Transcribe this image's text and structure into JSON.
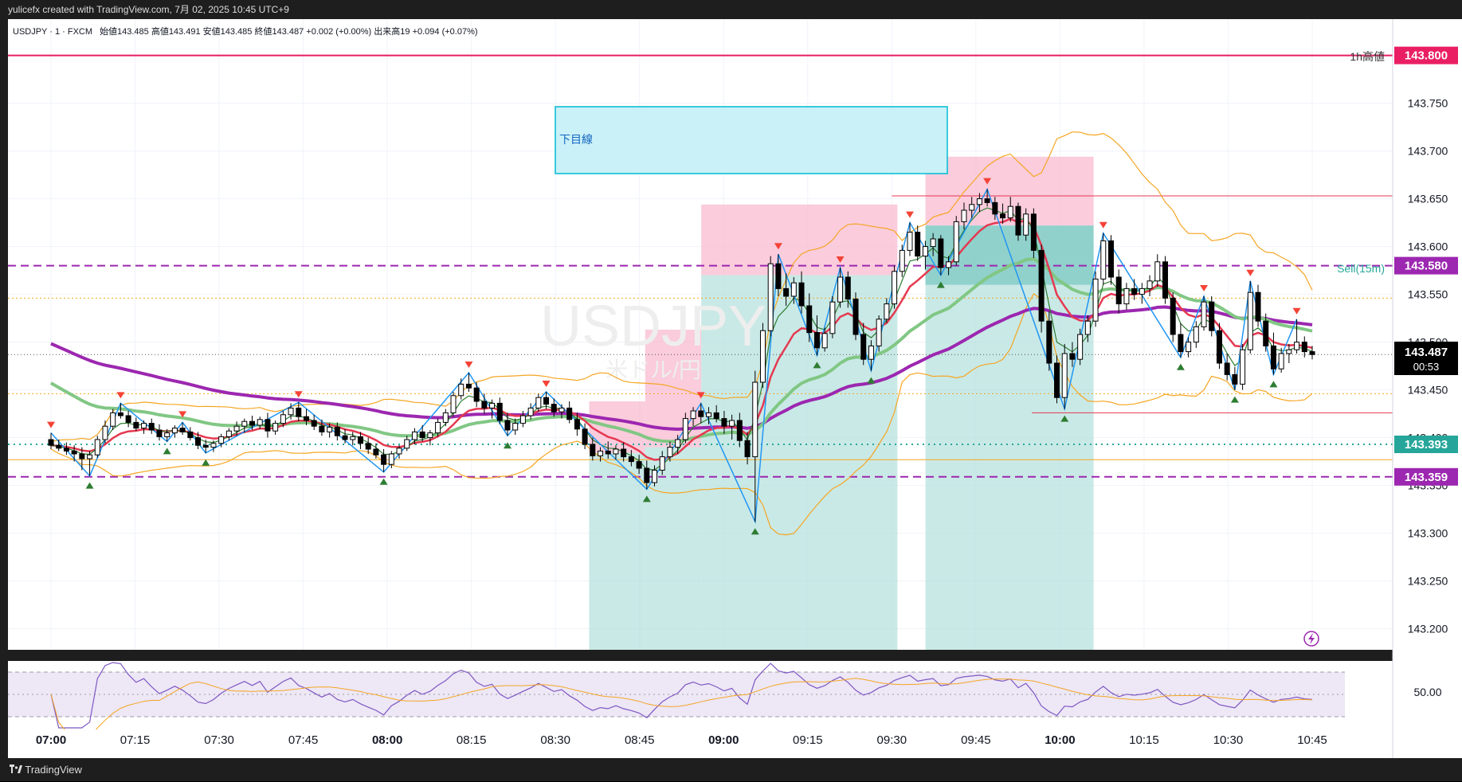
{
  "header": {
    "credit": "yulicefx created with TradingView.com, 7月 02, 2025 10:45 UTC+9"
  },
  "legend": {
    "symbol": "USDJPY · 1 · FXCM",
    "ohlc": "始値143.485  高値143.491  安値143.485  終値143.487  +0.002 (+0.00%)  出来高19  +0.094 (+0.07%)"
  },
  "watermark": {
    "symbol": "USDJPY",
    "sub": "米ドル/円"
  },
  "annotations": {
    "box_label": "下目線",
    "high_label": "1h高値",
    "sell_label": "Sell(15m)",
    "countdown": "00:53"
  },
  "footer": {
    "brand": "TradingView"
  },
  "colors": {
    "background": "#ffffff",
    "grid": "#f0f3fa",
    "ma_purple": "#9c27b0",
    "ma_green": "#81c784",
    "ma_red": "#e53950",
    "bollinger": "#f5a623",
    "zigzag": "#2196f3",
    "short_green": "#2e7d32",
    "high_line": "#e91e63",
    "level_teal": "#26a69a",
    "dashed_purple": "#9c27b0",
    "box_cyan": "#00bcd4",
    "profit_zone": "#b2dfdb",
    "loss_zone": "#f8bbd0",
    "rsi_band": "#ede7f6"
  },
  "chart_data": {
    "type": "candlestick",
    "symbol": "USDJPY",
    "interval": "1",
    "x_ticks": [
      {
        "label": "07:00",
        "bold": true
      },
      {
        "label": "07:15",
        "bold": false
      },
      {
        "label": "07:30",
        "bold": false
      },
      {
        "label": "07:45",
        "bold": false
      },
      {
        "label": "08:00",
        "bold": true
      },
      {
        "label": "08:15",
        "bold": false
      },
      {
        "label": "08:30",
        "bold": false
      },
      {
        "label": "08:45",
        "bold": false
      },
      {
        "label": "09:00",
        "bold": true
      },
      {
        "label": "09:15",
        "bold": false
      },
      {
        "label": "09:30",
        "bold": false
      },
      {
        "label": "09:45",
        "bold": false
      },
      {
        "label": "10:00",
        "bold": true
      },
      {
        "label": "10:15",
        "bold": false
      },
      {
        "label": "10:30",
        "bold": false
      },
      {
        "label": "10:45",
        "bold": false
      }
    ],
    "y_ticks": [
      "143.750",
      "143.700",
      "143.650",
      "143.600",
      "143.550",
      "143.500",
      "143.450",
      "143.400",
      "143.350",
      "143.300",
      "143.250",
      "143.200"
    ],
    "ylim": [
      143.178,
      143.838
    ],
    "xlim_minutes": [
      0,
      239
    ],
    "levels": [
      {
        "price": 143.8,
        "label": "143.800",
        "color": "#e91e63",
        "style": "solid"
      },
      {
        "price": 143.58,
        "label": "143.580",
        "color": "#9c27b0",
        "style": "dashed"
      },
      {
        "price": 143.393,
        "label": "143.393",
        "color": "#26a69a",
        "style": "dotted"
      },
      {
        "price": 143.359,
        "label": "143.359",
        "color": "#9c27b0",
        "style": "dashed"
      }
    ],
    "current_price": {
      "price": 143.487,
      "label": "143.487"
    },
    "candles": [
      [
        143.398,
        143.405,
        143.388,
        143.392
      ],
      [
        143.392,
        143.398,
        143.386,
        143.389
      ],
      [
        143.389,
        143.395,
        143.382,
        143.386
      ],
      [
        143.386,
        143.392,
        143.375,
        143.383
      ],
      [
        143.383,
        143.39,
        143.366,
        143.378
      ],
      [
        143.378,
        143.386,
        143.36,
        143.382
      ],
      [
        143.382,
        143.402,
        143.379,
        143.398
      ],
      [
        143.398,
        143.418,
        143.394,
        143.412
      ],
      [
        143.412,
        143.43,
        143.408,
        143.426
      ],
      [
        143.426,
        143.436,
        143.42,
        143.423
      ],
      [
        143.423,
        143.428,
        143.411,
        143.416
      ],
      [
        143.416,
        143.421,
        143.407,
        143.41
      ],
      [
        143.41,
        143.418,
        143.404,
        143.415
      ],
      [
        143.415,
        143.42,
        143.404,
        143.408
      ],
      [
        143.408,
        143.414,
        143.397,
        143.401
      ],
      [
        143.401,
        143.409,
        143.396,
        143.405
      ],
      [
        143.405,
        143.413,
        143.4,
        143.41
      ],
      [
        143.41,
        143.416,
        143.403,
        143.406
      ],
      [
        143.406,
        143.411,
        143.397,
        143.4
      ],
      [
        143.4,
        143.406,
        143.388,
        143.392
      ],
      [
        143.392,
        143.398,
        143.384,
        143.39
      ],
      [
        143.39,
        143.397,
        143.385,
        143.394
      ],
      [
        143.394,
        143.404,
        143.39,
        143.401
      ],
      [
        143.401,
        143.41,
        143.397,
        143.407
      ],
      [
        143.407,
        143.417,
        143.402,
        143.412
      ],
      [
        143.412,
        143.42,
        143.405,
        143.417
      ],
      [
        143.417,
        143.423,
        143.408,
        143.413
      ],
      [
        143.413,
        143.422,
        143.409,
        143.419
      ],
      [
        143.419,
        143.426,
        143.4,
        143.407
      ],
      [
        143.407,
        143.418,
        143.403,
        143.415
      ],
      [
        143.415,
        143.428,
        143.411,
        143.424
      ],
      [
        143.424,
        143.436,
        143.419,
        143.431
      ],
      [
        143.431,
        143.437,
        143.417,
        143.422
      ],
      [
        143.422,
        143.43,
        143.413,
        143.418
      ],
      [
        143.418,
        143.424,
        143.408,
        143.412
      ],
      [
        143.412,
        143.419,
        143.402,
        143.406
      ],
      [
        143.406,
        143.415,
        143.4,
        143.411
      ],
      [
        143.411,
        143.416,
        143.397,
        143.402
      ],
      [
        143.402,
        143.409,
        143.394,
        143.398
      ],
      [
        143.398,
        143.406,
        143.392,
        143.401
      ],
      [
        143.401,
        143.406,
        143.388,
        143.394
      ],
      [
        143.394,
        143.4,
        143.383,
        143.388
      ],
      [
        143.388,
        143.394,
        143.378,
        143.382
      ],
      [
        143.382,
        143.388,
        143.364,
        143.372
      ],
      [
        143.372,
        143.386,
        143.368,
        143.383
      ],
      [
        143.383,
        143.392,
        143.378,
        143.389
      ],
      [
        143.389,
        143.402,
        143.386,
        143.398
      ],
      [
        143.398,
        143.41,
        143.393,
        143.406
      ],
      [
        143.406,
        143.413,
        143.396,
        143.4
      ],
      [
        143.4,
        143.408,
        143.392,
        143.405
      ],
      [
        143.405,
        143.42,
        143.401,
        143.416
      ],
      [
        143.416,
        143.43,
        143.412,
        143.426
      ],
      [
        143.426,
        143.448,
        143.422,
        143.444
      ],
      [
        143.444,
        143.462,
        143.44,
        143.456
      ],
      [
        143.456,
        143.468,
        143.448,
        143.452
      ],
      [
        143.452,
        143.458,
        143.432,
        143.438
      ],
      [
        143.438,
        143.446,
        143.425,
        143.431
      ],
      [
        143.431,
        143.44,
        143.42,
        143.436
      ],
      [
        143.436,
        143.442,
        143.414,
        143.418
      ],
      [
        143.418,
        143.426,
        143.402,
        143.408
      ],
      [
        143.408,
        143.42,
        143.403,
        143.415
      ],
      [
        143.415,
        143.428,
        143.411,
        143.423
      ],
      [
        143.423,
        143.436,
        143.419,
        143.431
      ],
      [
        143.431,
        143.446,
        143.427,
        143.442
      ],
      [
        143.442,
        143.448,
        143.43,
        143.435
      ],
      [
        143.435,
        143.441,
        143.422,
        143.427
      ],
      [
        143.427,
        143.435,
        143.42,
        143.431
      ],
      [
        143.431,
        143.438,
        143.415,
        143.419
      ],
      [
        143.419,
        143.426,
        143.402,
        143.409
      ],
      [
        143.409,
        143.415,
        143.388,
        143.393
      ],
      [
        143.393,
        143.4,
        143.376,
        143.381
      ],
      [
        143.381,
        143.39,
        143.375,
        143.386
      ],
      [
        143.386,
        143.396,
        143.378,
        143.383
      ],
      [
        143.383,
        143.392,
        143.377,
        143.388
      ],
      [
        143.388,
        143.395,
        143.375,
        143.38
      ],
      [
        143.38,
        143.387,
        143.37,
        143.375
      ],
      [
        143.375,
        143.382,
        143.362,
        143.368
      ],
      [
        143.368,
        143.376,
        143.346,
        143.353
      ],
      [
        143.353,
        143.371,
        143.349,
        143.366
      ],
      [
        143.366,
        143.386,
        143.361,
        143.38
      ],
      [
        143.38,
        143.396,
        143.375,
        143.39
      ],
      [
        143.39,
        143.403,
        143.383,
        143.398
      ],
      [
        143.398,
        143.426,
        143.394,
        143.42
      ],
      [
        143.42,
        143.432,
        143.412,
        143.428
      ],
      [
        143.428,
        143.436,
        143.415,
        143.422
      ],
      [
        143.422,
        143.432,
        143.414,
        143.426
      ],
      [
        143.426,
        143.434,
        143.416,
        143.42
      ],
      [
        143.42,
        143.428,
        143.404,
        143.412
      ],
      [
        143.412,
        143.424,
        143.398,
        143.418
      ],
      [
        143.418,
        143.426,
        143.39,
        143.397
      ],
      [
        143.397,
        143.406,
        143.372,
        143.38
      ],
      [
        143.38,
        143.47,
        143.312,
        143.458
      ],
      [
        143.458,
        143.52,
        143.452,
        143.512
      ],
      [
        143.512,
        143.59,
        143.506,
        143.582
      ],
      [
        143.582,
        143.592,
        143.548,
        143.556
      ],
      [
        143.556,
        143.572,
        143.538,
        143.548
      ],
      [
        143.548,
        143.568,
        143.54,
        143.562
      ],
      [
        143.562,
        143.574,
        143.53,
        143.538
      ],
      [
        143.538,
        143.551,
        143.5,
        143.51
      ],
      [
        143.51,
        143.528,
        143.486,
        143.494
      ],
      [
        143.494,
        143.515,
        143.49,
        143.509
      ],
      [
        143.509,
        143.548,
        143.504,
        143.542
      ],
      [
        143.542,
        143.578,
        143.536,
        143.568
      ],
      [
        143.568,
        143.574,
        143.536,
        143.545
      ],
      [
        143.545,
        143.552,
        143.502,
        143.508
      ],
      [
        143.508,
        143.52,
        143.476,
        143.482
      ],
      [
        143.482,
        143.502,
        143.47,
        143.496
      ],
      [
        143.496,
        143.528,
        143.49,
        143.524
      ],
      [
        143.524,
        143.546,
        143.52,
        143.54
      ],
      [
        143.54,
        143.58,
        143.535,
        143.574
      ],
      [
        143.574,
        143.602,
        143.568,
        143.596
      ],
      [
        143.596,
        143.625,
        143.59,
        143.615
      ],
      [
        143.615,
        143.622,
        143.585,
        143.59
      ],
      [
        143.59,
        143.606,
        143.576,
        143.6
      ],
      [
        143.6,
        143.614,
        143.59,
        143.608
      ],
      [
        143.608,
        143.612,
        143.57,
        143.578
      ],
      [
        143.578,
        143.59,
        143.57,
        143.584
      ],
      [
        143.584,
        143.632,
        143.58,
        143.626
      ],
      [
        143.626,
        143.646,
        143.618,
        143.638
      ],
      [
        143.638,
        143.652,
        143.63,
        143.644
      ],
      [
        143.644,
        143.656,
        143.636,
        143.65
      ],
      [
        143.65,
        143.66,
        143.642,
        143.646
      ],
      [
        143.646,
        143.652,
        143.628,
        143.634
      ],
      [
        143.634,
        143.645,
        143.624,
        143.63
      ],
      [
        143.63,
        143.652,
        143.626,
        143.642
      ],
      [
        143.642,
        143.646,
        143.606,
        143.612
      ],
      [
        143.612,
        143.64,
        143.606,
        143.634
      ],
      [
        143.634,
        143.64,
        143.588,
        143.596
      ],
      [
        143.596,
        143.602,
        143.51,
        143.522
      ],
      [
        143.522,
        143.532,
        143.47,
        143.478
      ],
      [
        143.478,
        143.486,
        143.436,
        143.442
      ],
      [
        143.442,
        143.498,
        143.43,
        143.488
      ],
      [
        143.488,
        143.5,
        143.474,
        143.482
      ],
      [
        143.482,
        143.514,
        143.476,
        143.508
      ],
      [
        143.508,
        143.528,
        143.5,
        143.522
      ],
      [
        143.522,
        143.574,
        143.516,
        143.566
      ],
      [
        143.566,
        143.614,
        143.56,
        143.606
      ],
      [
        143.606,
        143.612,
        143.56,
        143.568
      ],
      [
        143.568,
        143.576,
        143.53,
        143.54
      ],
      [
        143.54,
        143.562,
        143.534,
        143.556
      ],
      [
        143.556,
        143.566,
        143.544,
        143.55
      ],
      [
        143.55,
        143.562,
        143.54,
        143.556
      ],
      [
        143.556,
        143.57,
        143.548,
        143.564
      ],
      [
        143.564,
        143.592,
        143.558,
        143.584
      ],
      [
        143.584,
        143.59,
        143.54,
        143.546
      ],
      [
        143.546,
        143.552,
        143.5,
        143.508
      ],
      [
        143.508,
        143.52,
        143.484,
        143.49
      ],
      [
        143.49,
        143.505,
        143.484,
        143.5
      ],
      [
        143.5,
        143.522,
        143.494,
        143.516
      ],
      [
        143.516,
        143.548,
        143.512,
        143.542
      ],
      [
        143.542,
        143.548,
        143.506,
        143.512
      ],
      [
        143.512,
        143.52,
        143.472,
        143.478
      ],
      [
        143.478,
        143.488,
        143.46,
        143.466
      ],
      [
        143.466,
        143.474,
        143.45,
        143.456
      ],
      [
        143.456,
        143.498,
        143.45,
        143.492
      ],
      [
        143.492,
        143.564,
        143.488,
        143.552
      ],
      [
        143.552,
        143.56,
        143.516,
        143.522
      ],
      [
        143.522,
        143.53,
        143.49,
        143.496
      ],
      [
        143.496,
        143.51,
        143.466,
        143.472
      ],
      [
        143.472,
        143.494,
        143.468,
        143.488
      ],
      [
        143.488,
        143.498,
        143.478,
        143.492
      ],
      [
        143.492,
        143.524,
        143.488,
        143.5
      ],
      [
        143.5,
        143.506,
        143.484,
        143.49
      ],
      [
        143.49,
        143.496,
        143.482,
        143.487
      ]
    ],
    "panes": {
      "main": "price",
      "lower": "RSI"
    },
    "rsi_ticks": [
      "50.00"
    ]
  }
}
